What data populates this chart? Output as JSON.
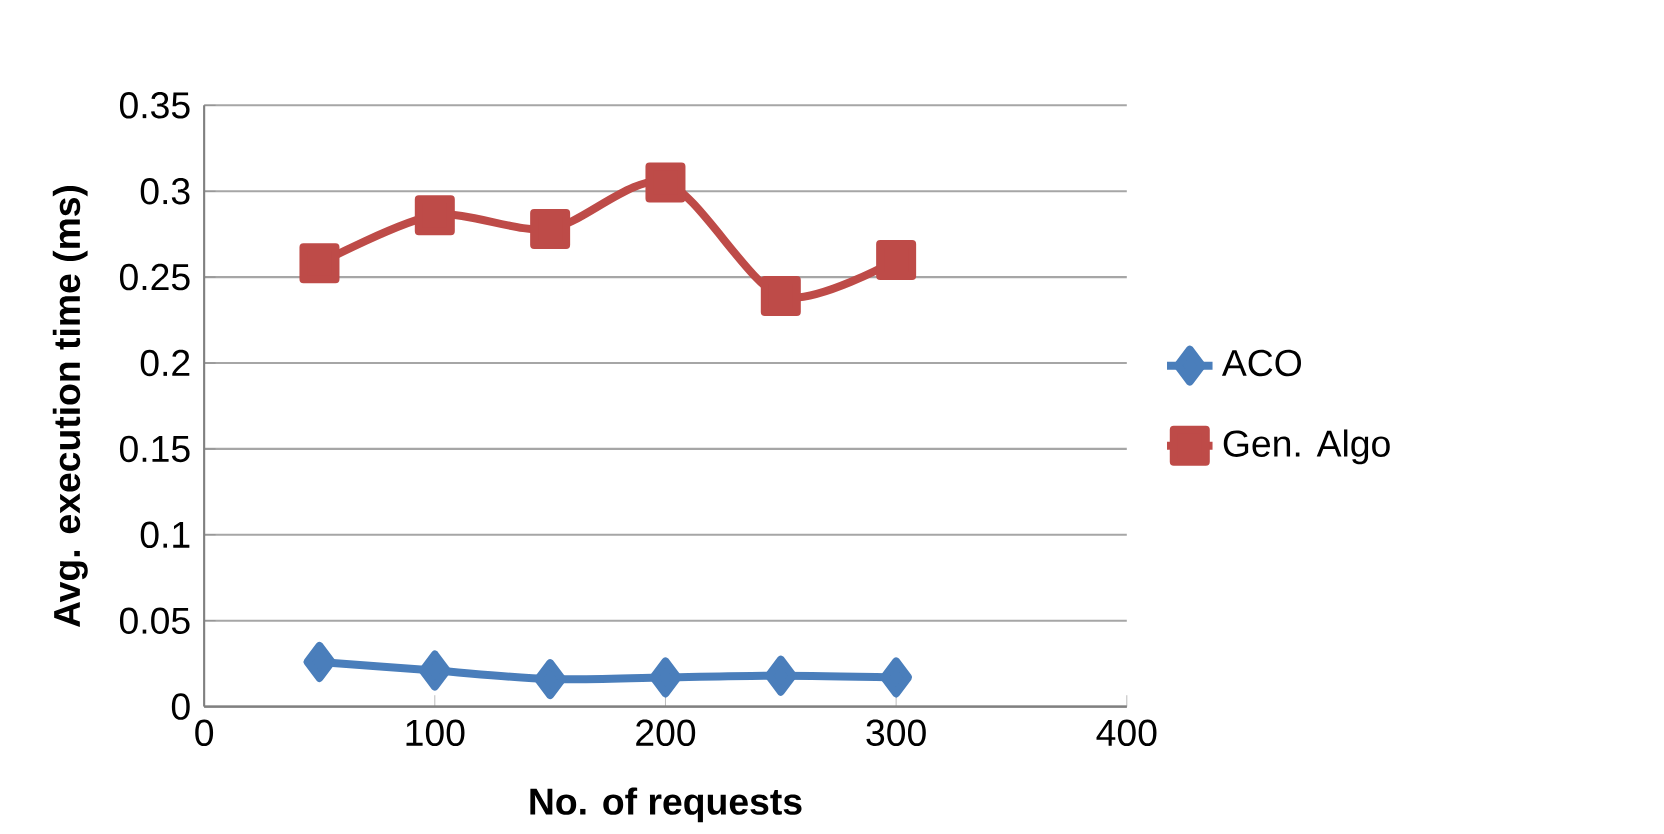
{
  "chart_data": {
    "type": "line",
    "xlabel": "No. of requests",
    "ylabel": "Avg. execution time (ms)",
    "x": [
      50,
      100,
      150,
      200,
      250,
      300
    ],
    "series": [
      {
        "name": "ACO",
        "color": "#4a7ebb",
        "marker": "diamond",
        "values": [
          0.026,
          0.021,
          0.016,
          0.017,
          0.018,
          0.017
        ]
      },
      {
        "name": "Gen. Algo",
        "color": "#be4b48",
        "marker": "square",
        "values": [
          0.258,
          0.286,
          0.278,
          0.305,
          0.239,
          0.26
        ]
      }
    ],
    "xlim": [
      0,
      400
    ],
    "xticks": [
      0,
      100,
      200,
      300,
      400
    ],
    "ylim": [
      0,
      0.35
    ],
    "yticks": [
      0,
      0.05,
      0.1,
      0.15,
      0.2,
      0.25,
      0.3,
      0.35
    ],
    "grid": "y",
    "legend": "right",
    "line_style": "solid"
  }
}
